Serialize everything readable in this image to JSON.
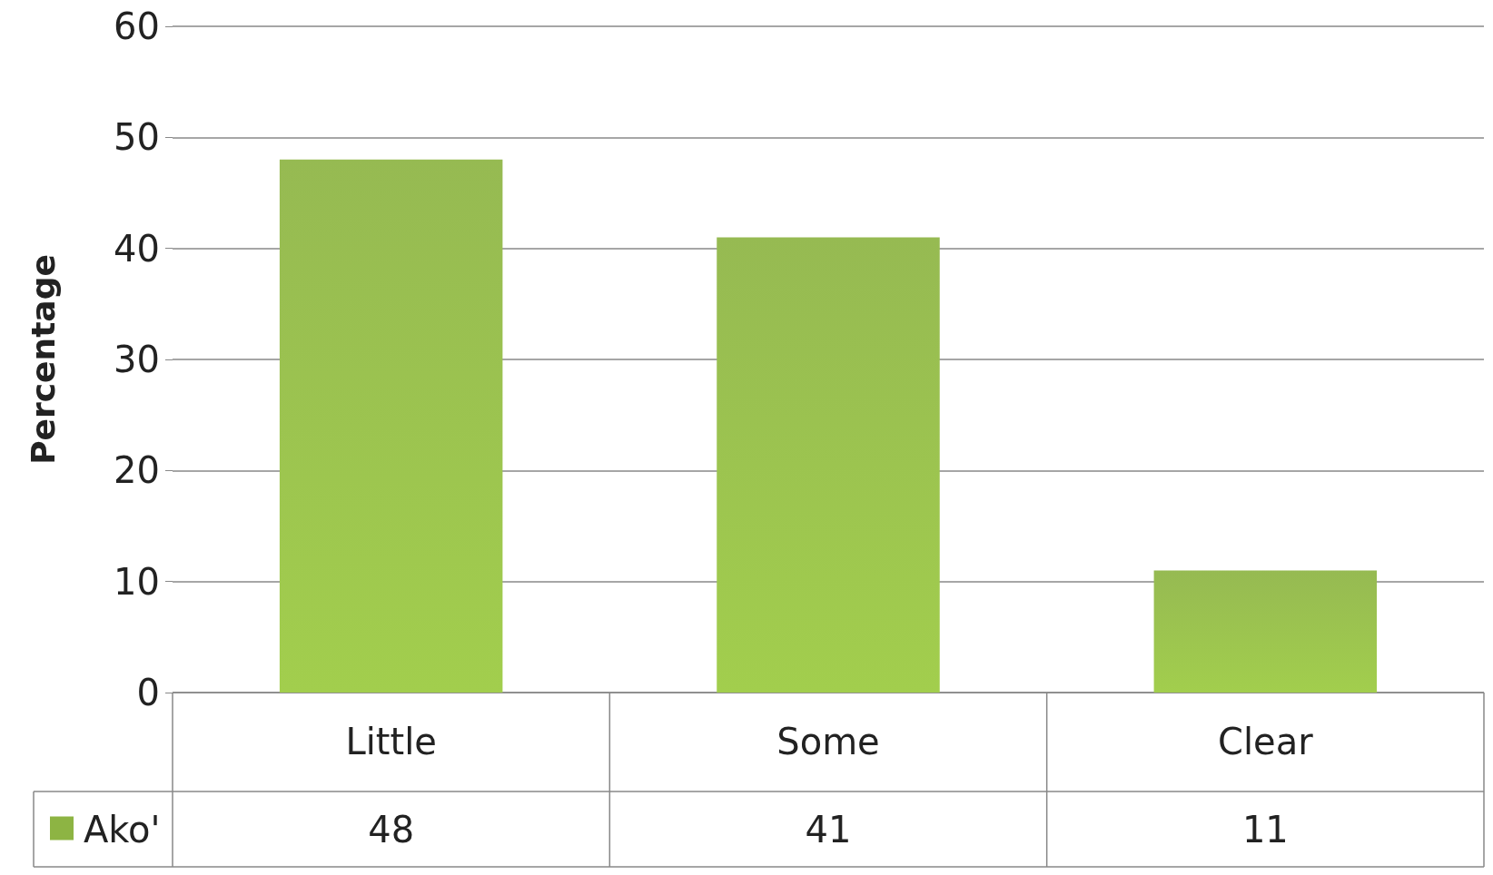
{
  "chart_data": {
    "type": "bar",
    "ylabel": "Percentage",
    "categories": [
      "Little",
      "Some",
      "Clear"
    ],
    "series": [
      {
        "name": "Ako'",
        "color": "#8db443",
        "values": [
          48,
          41,
          11
        ]
      }
    ],
    "ylim": [
      0,
      60
    ],
    "yticks": [
      0,
      10,
      20,
      30,
      40,
      50,
      60
    ],
    "grid": "y",
    "legend": "bottom left",
    "data_labels": true
  }
}
